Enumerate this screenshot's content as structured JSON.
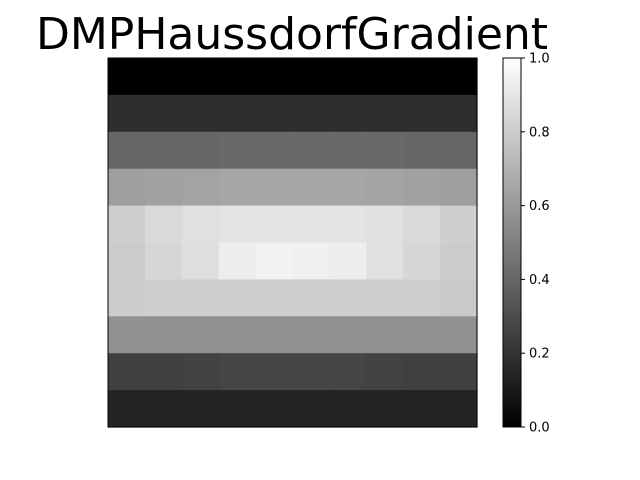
{
  "chart_data": {
    "type": "heatmap",
    "title": "DMPHaussdorfGradient",
    "xlabel": "",
    "ylabel": "",
    "x_ticks_shown": false,
    "y_ticks_shown": false,
    "grid": false,
    "colormap": "gray",
    "value_range": [
      0.0,
      1.0
    ],
    "colorbar": {
      "placement": "right",
      "ticks": [
        0.0,
        0.2,
        0.4,
        0.6,
        0.8,
        1.0
      ],
      "tick_labels": [
        "0.0",
        "0.2",
        "0.4",
        "0.6",
        "0.8",
        "1.0"
      ]
    },
    "rows": 10,
    "cols": 10,
    "values": [
      [
        0.0,
        0.0,
        0.0,
        0.0,
        0.0,
        0.0,
        0.0,
        0.0,
        0.0,
        0.0
      ],
      [
        0.18,
        0.18,
        0.18,
        0.18,
        0.18,
        0.18,
        0.18,
        0.18,
        0.18,
        0.18
      ],
      [
        0.4,
        0.4,
        0.4,
        0.41,
        0.41,
        0.41,
        0.41,
        0.41,
        0.4,
        0.4
      ],
      [
        0.62,
        0.63,
        0.64,
        0.65,
        0.65,
        0.65,
        0.65,
        0.64,
        0.63,
        0.62
      ],
      [
        0.81,
        0.85,
        0.88,
        0.89,
        0.89,
        0.89,
        0.89,
        0.88,
        0.85,
        0.81
      ],
      [
        0.8,
        0.84,
        0.87,
        0.93,
        0.95,
        0.94,
        0.93,
        0.88,
        0.84,
        0.8
      ],
      [
        0.8,
        0.81,
        0.81,
        0.81,
        0.81,
        0.81,
        0.81,
        0.81,
        0.81,
        0.79
      ],
      [
        0.57,
        0.57,
        0.57,
        0.57,
        0.57,
        0.57,
        0.57,
        0.57,
        0.57,
        0.57
      ],
      [
        0.25,
        0.25,
        0.26,
        0.27,
        0.27,
        0.27,
        0.27,
        0.26,
        0.25,
        0.25
      ],
      [
        0.14,
        0.14,
        0.14,
        0.14,
        0.14,
        0.14,
        0.14,
        0.14,
        0.14,
        0.14
      ]
    ]
  }
}
